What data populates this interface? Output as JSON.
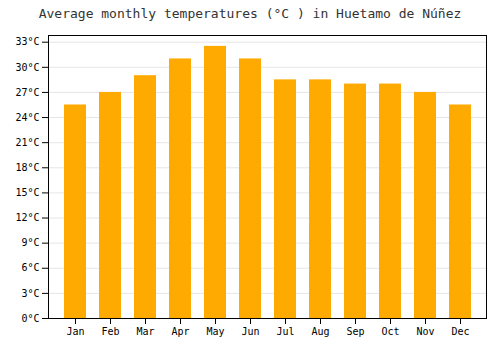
{
  "chart_data": {
    "type": "bar",
    "title": "Average monthly temperatures (°C ) in Huetamo de Núñez",
    "categories": [
      "Jan",
      "Feb",
      "Mar",
      "Apr",
      "May",
      "Jun",
      "Jul",
      "Aug",
      "Sep",
      "Oct",
      "Nov",
      "Dec"
    ],
    "values": [
      25.5,
      27.0,
      29.0,
      31.0,
      32.5,
      31.0,
      28.5,
      28.5,
      28.0,
      28.0,
      27.0,
      25.5
    ],
    "color": "#FFAA00",
    "ylim": [
      0,
      33.8
    ],
    "yticks": [
      {
        "value": 0,
        "label": "0°C"
      },
      {
        "value": 3,
        "label": "3°C"
      },
      {
        "value": 6,
        "label": "6°C"
      },
      {
        "value": 9,
        "label": "9°C"
      },
      {
        "value": 12,
        "label": "12°C"
      },
      {
        "value": 15,
        "label": "15°C"
      },
      {
        "value": 18,
        "label": "18°C"
      },
      {
        "value": 21,
        "label": "21°C"
      },
      {
        "value": 24,
        "label": "24°C"
      },
      {
        "value": 27,
        "label": "27°C"
      },
      {
        "value": 30,
        "label": "30°C"
      },
      {
        "value": 33,
        "label": "33°C"
      }
    ],
    "grid": true
  }
}
